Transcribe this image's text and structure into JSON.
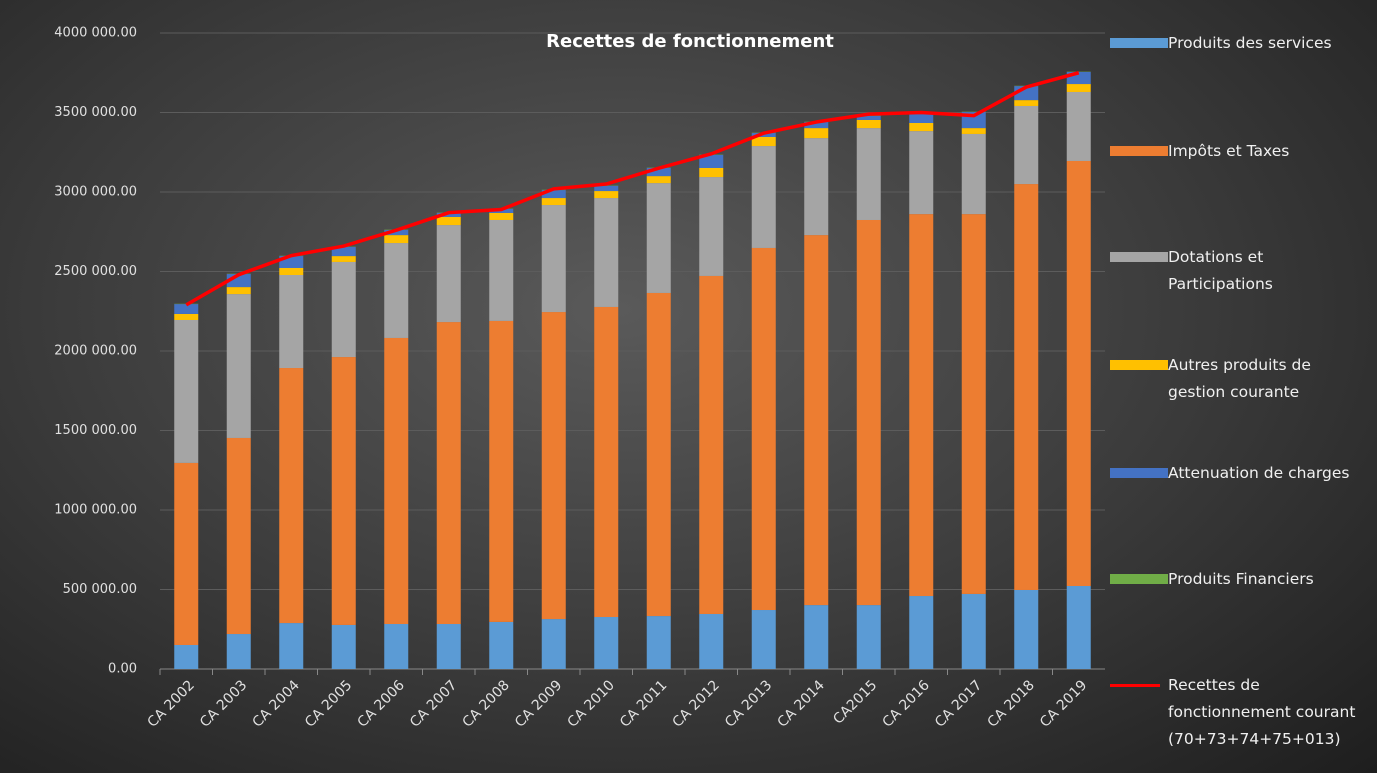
{
  "chart_data": {
    "type": "bar",
    "stacked": true,
    "title": "Recettes de fonctionnement",
    "categories": [
      "CA 2002",
      "CA 2003",
      "CA 2004",
      "CA 2005",
      "CA 2006",
      "CA 2007",
      "CA 2008",
      "CA 2009",
      "CA 2010",
      "CA 2011",
      "CA 2012",
      "CA 2013",
      "CA 2014",
      "CA2015",
      "CA 2016",
      "CA 2017",
      "CA 2018",
      "CA 2019"
    ],
    "series": [
      {
        "name": "Produits des services",
        "color": "#5b9bd5",
        "values": [
          151000,
          220000,
          289000,
          277000,
          283000,
          283000,
          296000,
          314000,
          327000,
          333000,
          346000,
          371000,
          402000,
          402000,
          459000,
          472000,
          497000,
          522000
        ]
      },
      {
        "name": "Impôts et Taxes",
        "color": "#ed7d31",
        "values": [
          1145000,
          1233000,
          1604000,
          1685000,
          1799000,
          1899000,
          1893000,
          1931000,
          1950000,
          2032000,
          2126000,
          2277000,
          2327000,
          2422000,
          2402000,
          2389000,
          2553000,
          2673000
        ]
      },
      {
        "name": "Dotations et Participations",
        "color": "#a5a5a5",
        "values": [
          899000,
          905000,
          585000,
          598000,
          597000,
          610000,
          635000,
          673000,
          685000,
          691000,
          622000,
          641000,
          610000,
          578000,
          522000,
          504000,
          491000,
          434000
        ]
      },
      {
        "name": "Autres produits de gestion courante",
        "color": "#ffc000",
        "values": [
          38000,
          44000,
          44000,
          37000,
          50000,
          51000,
          44000,
          44000,
          44000,
          44000,
          57000,
          57000,
          63000,
          51000,
          51000,
          37000,
          37000,
          50000
        ]
      },
      {
        "name": "Attenuation de charges",
        "color": "#4472c4",
        "values": [
          62000,
          82000,
          75000,
          57000,
          32000,
          25000,
          25000,
          50000,
          32000,
          51000,
          82000,
          25000,
          38000,
          25000,
          63000,
          101000,
          88000,
          76000
        ]
      },
      {
        "name": "Produits Financiers",
        "color": "#70ad47",
        "values": [
          2000,
          2000,
          2000,
          2000,
          2000,
          2000,
          2000,
          2000,
          2000,
          2000,
          2000,
          2000,
          2000,
          2000,
          2000,
          2000,
          2000,
          2000
        ]
      },
      {
        "name": "Recettes de fonctionnement courant (70+73+74+75+013)",
        "color": "#ff0000",
        "kind": "line",
        "values": [
          2290000,
          2480000,
          2600000,
          2660000,
          2760000,
          2870000,
          2890000,
          3020000,
          3050000,
          3150000,
          3240000,
          3370000,
          3440000,
          3490000,
          3500000,
          3480000,
          3660000,
          3750000
        ]
      }
    ],
    "ylim": [
      0,
      4000000
    ],
    "yticks": [
      {
        "value": 0,
        "label": "0.00"
      },
      {
        "value": 500000,
        "label": "500 000.00"
      },
      {
        "value": 1000000,
        "label": "1000 000.00"
      },
      {
        "value": 1500000,
        "label": "1500 000.00"
      },
      {
        "value": 2000000,
        "label": "2000 000.00"
      },
      {
        "value": 2500000,
        "label": "2500 000.00"
      },
      {
        "value": 3000000,
        "label": "3000 000.00"
      },
      {
        "value": 3500000,
        "label": "3500 000.00"
      },
      {
        "value": 4000000,
        "label": "4000 000.00"
      }
    ],
    "grid": true,
    "legend": "right"
  }
}
